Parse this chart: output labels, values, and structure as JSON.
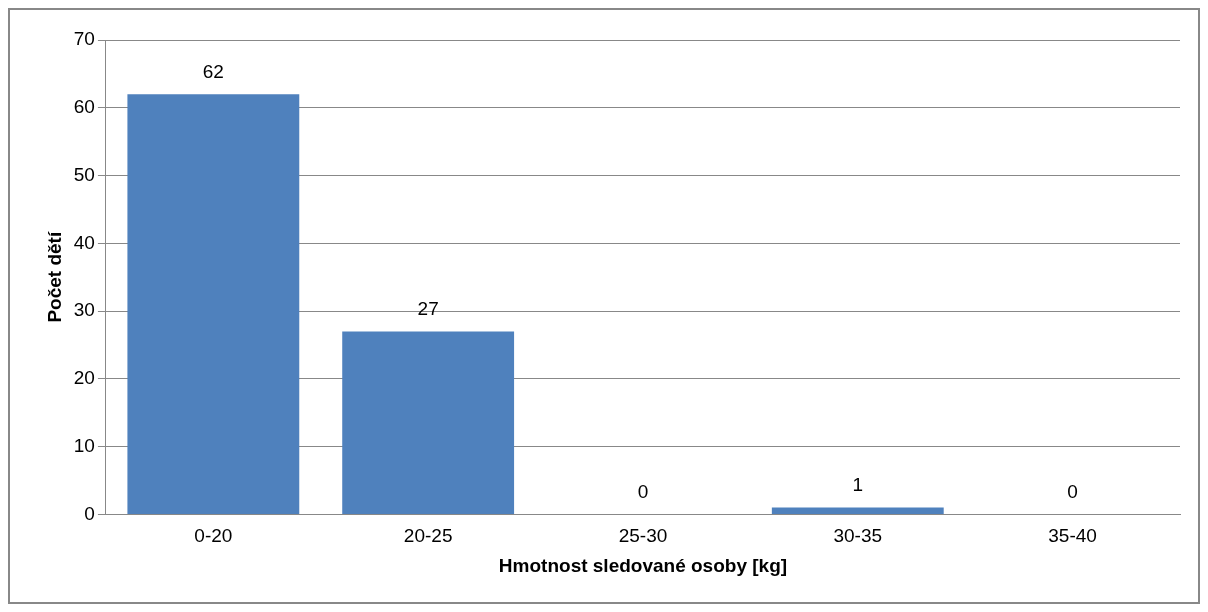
{
  "chart_data": {
    "type": "bar",
    "xlabel": "Hmotnost sledované osoby [kg]",
    "ylabel": "Počet dětí",
    "categories": [
      "0-20",
      "20-25",
      "25-30",
      "30-35",
      "35-40"
    ],
    "values": [
      62,
      27,
      0,
      1,
      0
    ],
    "color": "#4f81bd",
    "ylim": [
      0,
      70
    ],
    "yticks": [
      0,
      10,
      20,
      30,
      40,
      50,
      60,
      70
    ],
    "grid": "y",
    "data_labels": true,
    "legend": false
  }
}
